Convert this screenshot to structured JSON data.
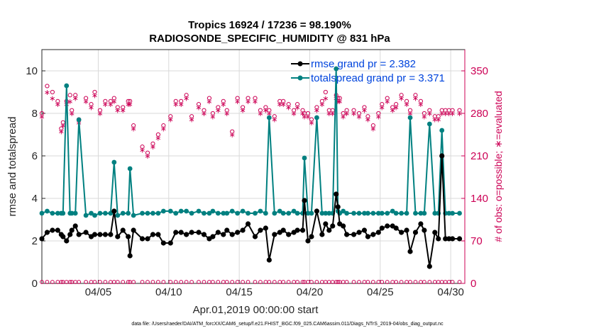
{
  "colors": {
    "rmse": "#000000",
    "spread": "#008080",
    "obs": "#cc0055",
    "legend_text": "#0044dd"
  },
  "chart_data": {
    "type": "line",
    "title_line1": "Tropics 16924 / 17236 = 98.190%",
    "title_line2": "RADIOSONDE_SPECIFIC_HUMIDITY @ 831 hPa",
    "xlabel": "Apr.01,2019 00:00:00 start",
    "ylabel": "rmse and totalspread",
    "ylabel_right": "# of obs: o=possible; ∗=evaluated",
    "footer": "data file: /Users/raeder/DAI/ATM_forcXX/CAM6_setup/f.e21.FHIST_BGC.f09_025.CAM6assim.011/Diags_NTrS_2019-04/obs_diag_output.nc",
    "x_ticks": [
      4,
      9,
      14,
      19,
      24,
      29
    ],
    "x_tick_labels": [
      "04/05",
      "04/10",
      "04/15",
      "04/20",
      "04/25",
      "04/30"
    ],
    "xlim": [
      0,
      30
    ],
    "ylim": [
      0,
      11
    ],
    "y_ticks": [
      0,
      2,
      4,
      6,
      8,
      10
    ],
    "y_tick_labels": [
      "0",
      "2",
      "4",
      "6",
      "8",
      "10"
    ],
    "ylim_right": [
      0,
      385
    ],
    "y_ticks_right": [
      0,
      70,
      140,
      210,
      280,
      350
    ],
    "y_tick_labels_right": [
      "0",
      "70",
      "140",
      "210",
      "280",
      "350"
    ],
    "series": [
      {
        "name": "rmse",
        "legend": "rmse grand pr = 2.382",
        "x": [
          0,
          0.375,
          0.75,
          1.125,
          1.375,
          1.5,
          1.75,
          2.0,
          2.125,
          2.375,
          2.625,
          3.125,
          3.5,
          3.75,
          4.125,
          4.5,
          4.875,
          5.125,
          5.375,
          5.75,
          6.125,
          6.25,
          6.5,
          7.125,
          7.5,
          7.875,
          8.25,
          8.625,
          9.125,
          9.5,
          9.875,
          10.25,
          10.625,
          11.125,
          11.5,
          11.875,
          12.125,
          12.5,
          12.875,
          13.125,
          13.5,
          13.875,
          14.25,
          14.625,
          15.125,
          15.5,
          15.875,
          16.125,
          16.5,
          16.875,
          17.125,
          17.5,
          17.875,
          18.125,
          18.5,
          18.625,
          18.875,
          19.125,
          19.5,
          19.875,
          20.125,
          20.375,
          20.625,
          20.875,
          21.0,
          21.125,
          21.375,
          21.625,
          22.125,
          22.5,
          22.875,
          23.125,
          23.5,
          23.875,
          24.125,
          24.5,
          24.875,
          25.125,
          25.5,
          25.875,
          26.125,
          26.5,
          26.875,
          27.125,
          27.5,
          27.875,
          28.125,
          28.375,
          28.625,
          28.875,
          29.125,
          29.625
        ],
        "y": [
          2.1,
          2.4,
          2.5,
          2.5,
          2.3,
          2.2,
          2.0,
          2.3,
          2.5,
          2.7,
          2.3,
          2.4,
          2.2,
          2.3,
          2.3,
          2.3,
          2.3,
          3.4,
          2.2,
          2.5,
          2.2,
          1.3,
          2.5,
          2.1,
          2.1,
          2.3,
          2.3,
          1.9,
          1.9,
          2.4,
          2.4,
          2.3,
          2.4,
          2.4,
          2.3,
          2.1,
          2.2,
          2.4,
          2.3,
          2.5,
          2.3,
          2.4,
          2.5,
          2.8,
          2.2,
          2.5,
          2.6,
          1.1,
          2.3,
          2.4,
          2.5,
          2.3,
          2.4,
          2.5,
          2.5,
          3.9,
          2.0,
          2.2,
          3.4,
          2.3,
          2.8,
          2.5,
          2.7,
          4.2,
          3.6,
          2.8,
          2.7,
          2.3,
          2.3,
          2.4,
          2.5,
          2.2,
          2.3,
          2.4,
          2.6,
          2.7,
          2.7,
          2.6,
          2.4,
          2.5,
          1.5,
          2.4,
          2.8,
          2.5,
          0.8,
          2.4,
          2.1,
          6.0,
          2.1,
          2.1,
          2.1,
          2.1
        ]
      },
      {
        "name": "totalspread",
        "legend": "totalspread grand pr = 3.371",
        "x": [
          0,
          0.375,
          0.75,
          1.125,
          1.375,
          1.5,
          1.75,
          2.0,
          2.125,
          2.375,
          2.625,
          3.125,
          3.5,
          3.75,
          4.125,
          4.5,
          4.875,
          5.125,
          5.375,
          5.75,
          6.125,
          6.25,
          6.5,
          7.125,
          7.5,
          7.875,
          8.25,
          8.625,
          9.125,
          9.5,
          9.875,
          10.25,
          10.625,
          11.125,
          11.5,
          11.875,
          12.125,
          12.5,
          12.875,
          13.125,
          13.5,
          13.875,
          14.25,
          14.625,
          15.125,
          15.5,
          15.875,
          16.125,
          16.5,
          16.875,
          17.125,
          17.5,
          17.875,
          18.125,
          18.5,
          18.625,
          18.875,
          19.125,
          19.5,
          19.875,
          20.125,
          20.375,
          20.625,
          20.875,
          21.0,
          21.125,
          21.375,
          21.625,
          22.125,
          22.5,
          22.875,
          23.125,
          23.5,
          23.875,
          24.125,
          24.5,
          24.875,
          25.125,
          25.5,
          25.875,
          26.125,
          26.5,
          26.875,
          27.125,
          27.5,
          27.875,
          28.125,
          28.375,
          28.625,
          28.875,
          29.125,
          29.625
        ],
        "y": [
          3.3,
          3.4,
          3.3,
          3.3,
          3.3,
          3.3,
          9.3,
          3.3,
          3.3,
          3.3,
          7.7,
          3.2,
          3.3,
          3.2,
          3.3,
          3.3,
          3.3,
          5.7,
          3.2,
          3.3,
          3.3,
          5.4,
          3.2,
          3.3,
          3.3,
          3.3,
          3.3,
          3.4,
          3.4,
          3.3,
          3.4,
          3.4,
          3.3,
          3.4,
          3.3,
          3.3,
          3.4,
          3.3,
          3.3,
          3.3,
          3.4,
          3.3,
          3.4,
          3.3,
          3.3,
          3.4,
          3.3,
          7.8,
          3.3,
          3.4,
          3.3,
          3.3,
          3.4,
          3.3,
          3.3,
          5.9,
          3.3,
          3.3,
          7.8,
          3.3,
          3.3,
          3.3,
          3.3,
          10.1,
          3.4,
          3.3,
          3.4,
          3.3,
          3.3,
          3.3,
          3.3,
          3.3,
          3.3,
          3.3,
          3.3,
          3.3,
          3.4,
          3.3,
          3.3,
          3.3,
          7.8,
          3.3,
          3.3,
          3.3,
          7.5,
          3.3,
          3.3,
          7.2,
          3.3,
          3.3,
          3.3,
          3.3
        ]
      }
    ],
    "obs_x": [
      0,
      0.375,
      0.75,
      1.125,
      1.375,
      1.5,
      1.75,
      2.0,
      2.125,
      2.375,
      2.625,
      3.125,
      3.5,
      3.75,
      4.125,
      4.5,
      4.875,
      5.125,
      5.375,
      5.75,
      6.125,
      6.25,
      6.5,
      7.125,
      7.5,
      7.875,
      8.25,
      8.625,
      9.125,
      9.5,
      9.875,
      10.25,
      10.625,
      11.125,
      11.5,
      11.875,
      12.125,
      12.5,
      12.875,
      13.125,
      13.5,
      13.875,
      14.25,
      14.625,
      15.125,
      15.5,
      15.875,
      16.125,
      16.5,
      16.875,
      17.125,
      17.5,
      17.875,
      18.125,
      18.5,
      18.625,
      18.875,
      19.125,
      19.5,
      19.875,
      20.125,
      20.375,
      20.625,
      20.875,
      21.0,
      21.125,
      21.375,
      21.625,
      22.125,
      22.5,
      22.875,
      23.125,
      23.5,
      23.875,
      24.125,
      24.5,
      24.875,
      25.125,
      25.5,
      25.875,
      26.125,
      26.5,
      26.875,
      27.125,
      27.5,
      27.875,
      28.125,
      28.375,
      28.625,
      28.875,
      29.125,
      29.625
    ],
    "obs_possible": [
      280,
      325,
      315,
      300,
      255,
      265,
      300,
      310,
      285,
      310,
      270,
      305,
      295,
      315,
      285,
      300,
      300,
      305,
      290,
      290,
      300,
      300,
      260,
      225,
      215,
      230,
      245,
      260,
      275,
      300,
      300,
      310,
      275,
      295,
      285,
      305,
      280,
      290,
      300,
      285,
      250,
      305,
      290,
      305,
      305,
      285,
      290,
      285,
      275,
      300,
      300,
      295,
      285,
      295,
      285,
      280,
      280,
      270,
      290,
      300,
      315,
      285,
      285,
      310,
      305,
      305,
      280,
      285,
      285,
      280,
      290,
      275,
      260,
      280,
      295,
      305,
      290,
      295,
      310,
      300,
      285,
      310,
      300,
      280,
      285,
      275,
      275,
      285,
      285,
      285,
      285,
      285
    ],
    "obs_evaluated": [
      275,
      315,
      305,
      295,
      250,
      260,
      295,
      300,
      280,
      305,
      265,
      300,
      290,
      310,
      280,
      295,
      295,
      300,
      285,
      285,
      295,
      295,
      255,
      220,
      210,
      225,
      240,
      255,
      270,
      295,
      295,
      305,
      270,
      290,
      280,
      300,
      275,
      285,
      295,
      280,
      245,
      300,
      285,
      300,
      300,
      280,
      285,
      280,
      270,
      295,
      295,
      290,
      280,
      290,
      280,
      275,
      275,
      265,
      285,
      295,
      305,
      280,
      280,
      305,
      300,
      300,
      275,
      280,
      280,
      275,
      285,
      270,
      255,
      275,
      290,
      300,
      285,
      290,
      305,
      295,
      280,
      305,
      295,
      275,
      280,
      270,
      270,
      280,
      280,
      280,
      280,
      280
    ],
    "legend_position": "top-right"
  }
}
